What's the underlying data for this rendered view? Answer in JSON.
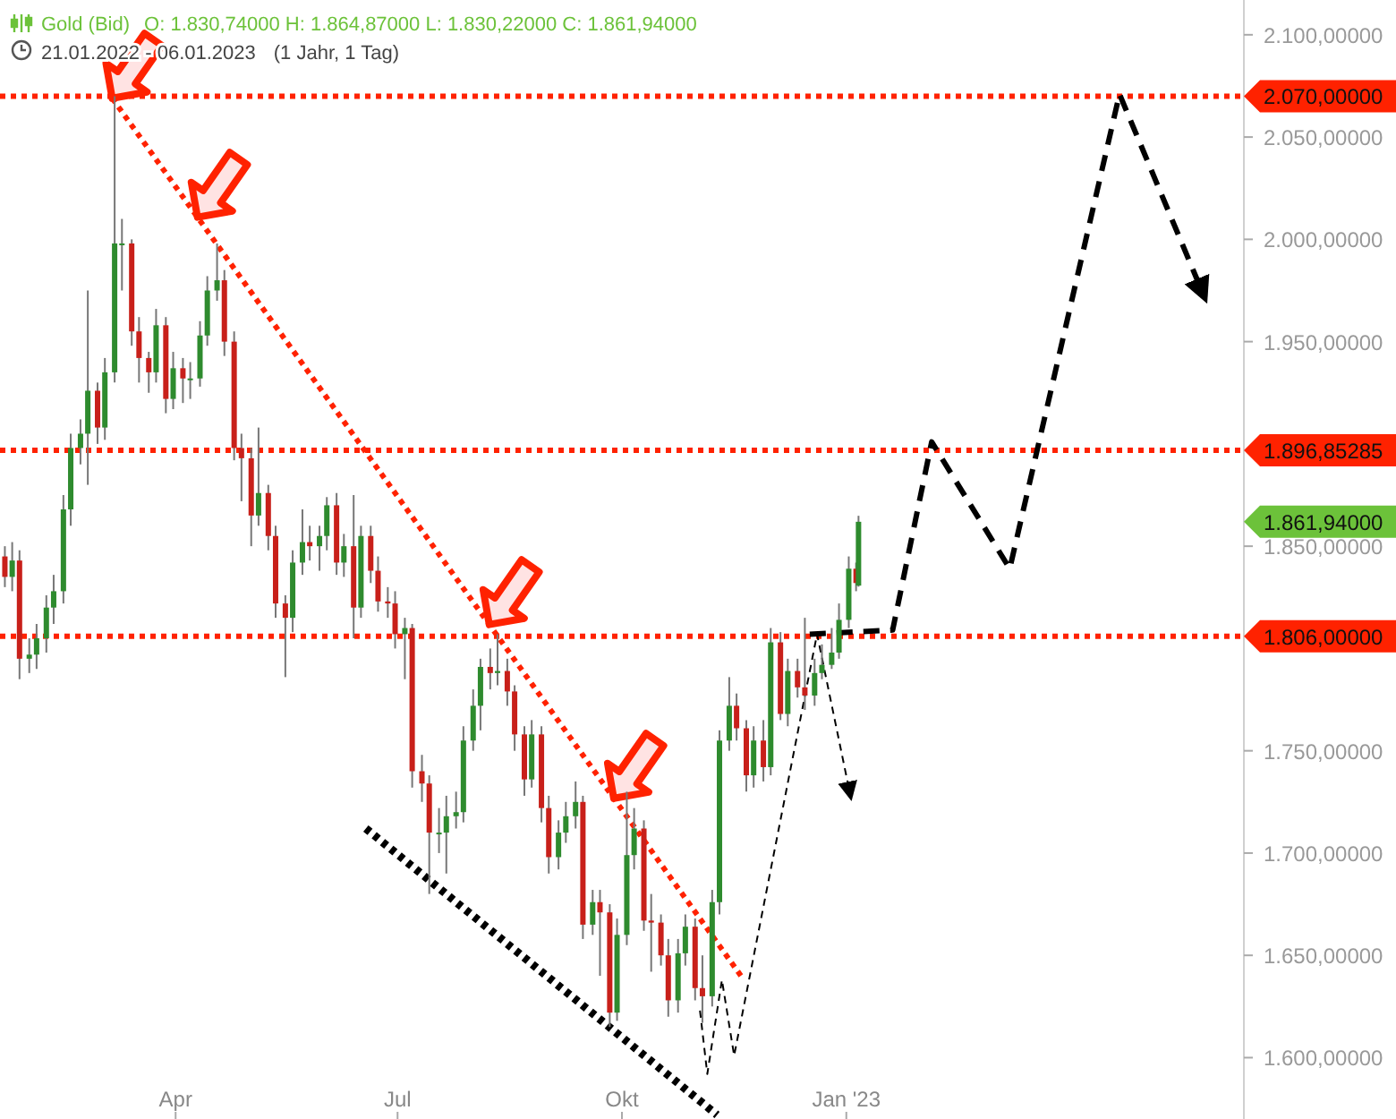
{
  "chart_data": {
    "type": "candlestick",
    "title": "Gold (Bid)",
    "subtitle": "O: 1.830,74000  H: 1.864,87000  L: 1.830,22000  C: 1.861,94000",
    "annotations": [
      "21.01.2022 - 06.01.2023",
      "(1 Jahr, 1 Tag)",
      "1.861,94000"
    ],
    "xlim": [
      "2022-01-19",
      "2023-06-13"
    ],
    "xticks": [
      {
        "value": "2022-04-01",
        "label": "Apr"
      },
      {
        "value": "2022-07-01",
        "label": "Jul"
      },
      {
        "value": "2022-10-01",
        "label": "Okt"
      },
      {
        "value": "2023-01-01",
        "label": "Jan '23"
      }
    ],
    "ylim": [
      1570,
      2117
    ],
    "yticks": [
      {
        "value": 1600,
        "label": "1.600,00000"
      },
      {
        "value": 1650,
        "label": "1.650,00000"
      },
      {
        "value": 1700,
        "label": "1.700,00000"
      },
      {
        "value": 1750,
        "label": "1.750,00000"
      },
      {
        "value": 1850,
        "label": "1.850,00000"
      },
      {
        "value": 1950,
        "label": "1.950,00000"
      },
      {
        "value": 2000,
        "label": "2.000,00000"
      },
      {
        "value": 2050,
        "label": "2.050,00000"
      },
      {
        "value": 2100,
        "label": "2.100,00000"
      }
    ],
    "ref_lines": [
      {
        "axis": "y",
        "value": 2070,
        "label": "2.070,00000",
        "color": "#ff2200",
        "line_style": "dotted"
      },
      {
        "axis": "y",
        "value": 1896.85285,
        "label": "1.896,85285",
        "color": "#ff2200",
        "line_style": "dotted"
      },
      {
        "axis": "y",
        "value": 1806,
        "label": "1.806,00000",
        "color": "#ff2200",
        "line_style": "dotted"
      }
    ],
    "series": [
      {
        "x": [
          "2022-01-21",
          "2022-01-24",
          "2022-01-27",
          "2022-01-31",
          "2022-02-03",
          "2022-02-07",
          "2022-02-10",
          "2022-02-14",
          "2022-02-17",
          "2022-02-21",
          "2022-02-24",
          "2022-02-28",
          "2022-03-03",
          "2022-03-07",
          "2022-03-10",
          "2022-03-14",
          "2022-03-17",
          "2022-03-21",
          "2022-03-24",
          "2022-03-28",
          "2022-03-31",
          "2022-04-04",
          "2022-04-07",
          "2022-04-11",
          "2022-04-14",
          "2022-04-18",
          "2022-04-21",
          "2022-04-25",
          "2022-04-28",
          "2022-05-02",
          "2022-05-05",
          "2022-05-09",
          "2022-05-12",
          "2022-05-16",
          "2022-05-19",
          "2022-05-23",
          "2022-05-26",
          "2022-05-30",
          "2022-06-02",
          "2022-06-06",
          "2022-06-09",
          "2022-06-13",
          "2022-06-16",
          "2022-06-20",
          "2022-06-23",
          "2022-06-27",
          "2022-06-30",
          "2022-07-04",
          "2022-07-07",
          "2022-07-11",
          "2022-07-14",
          "2022-07-18",
          "2022-07-21",
          "2022-07-25",
          "2022-07-28",
          "2022-08-01",
          "2022-08-04",
          "2022-08-08",
          "2022-08-11",
          "2022-08-15",
          "2022-08-18",
          "2022-08-22",
          "2022-08-25",
          "2022-08-29",
          "2022-09-01",
          "2022-09-05",
          "2022-09-08",
          "2022-09-12",
          "2022-09-15",
          "2022-09-19",
          "2022-09-22",
          "2022-09-26",
          "2022-09-29",
          "2022-10-03",
          "2022-10-06",
          "2022-10-10",
          "2022-10-13",
          "2022-10-17",
          "2022-10-20",
          "2022-10-24",
          "2022-10-27",
          "2022-10-31",
          "2022-11-03",
          "2022-11-07",
          "2022-11-10",
          "2022-11-14",
          "2022-11-17",
          "2022-11-21",
          "2022-11-24",
          "2022-11-28",
          "2022-12-01",
          "2022-12-05",
          "2022-12-08",
          "2022-12-12",
          "2022-12-15",
          "2022-12-19",
          "2022-12-22",
          "2022-12-26",
          "2022-12-29",
          "2023-01-02",
          "2023-01-05",
          "2023-01-06"
        ],
        "ohlc": [
          [
            1845,
            1850,
            1830,
            1835
          ],
          [
            1835,
            1852,
            1828,
            1843
          ],
          [
            1843,
            1848,
            1785,
            1795
          ],
          [
            1795,
            1805,
            1788,
            1797
          ],
          [
            1797,
            1812,
            1790,
            1805
          ],
          [
            1805,
            1826,
            1798,
            1820
          ],
          [
            1820,
            1836,
            1812,
            1828
          ],
          [
            1828,
            1875,
            1822,
            1868
          ],
          [
            1868,
            1905,
            1860,
            1898
          ],
          [
            1898,
            1912,
            1890,
            1905
          ],
          [
            1905,
            1975,
            1880,
            1926
          ],
          [
            1926,
            1930,
            1900,
            1908
          ],
          [
            1908,
            1942,
            1902,
            1935
          ],
          [
            1935,
            2070,
            1930,
            1998
          ],
          [
            1998,
            2010,
            1975,
            1998
          ],
          [
            1998,
            2000,
            1948,
            1955
          ],
          [
            1955,
            1962,
            1930,
            1942
          ],
          [
            1942,
            1945,
            1925,
            1935
          ],
          [
            1935,
            1966,
            1930,
            1958
          ],
          [
            1958,
            1962,
            1915,
            1922
          ],
          [
            1922,
            1945,
            1917,
            1937
          ],
          [
            1937,
            1942,
            1920,
            1932
          ],
          [
            1932,
            1940,
            1922,
            1932
          ],
          [
            1932,
            1960,
            1928,
            1953
          ],
          [
            1953,
            1982,
            1948,
            1975
          ],
          [
            1975,
            1998,
            1970,
            1980
          ],
          [
            1980,
            1985,
            1943,
            1950
          ],
          [
            1950,
            1955,
            1892,
            1898
          ],
          [
            1898,
            1905,
            1872,
            1893
          ],
          [
            1893,
            1898,
            1850,
            1865
          ],
          [
            1865,
            1908,
            1860,
            1876
          ],
          [
            1876,
            1880,
            1848,
            1855
          ],
          [
            1855,
            1860,
            1815,
            1822
          ],
          [
            1822,
            1826,
            1786,
            1815
          ],
          [
            1815,
            1848,
            1808,
            1842
          ],
          [
            1842,
            1868,
            1836,
            1852
          ],
          [
            1852,
            1860,
            1843,
            1850
          ],
          [
            1850,
            1860,
            1838,
            1855
          ],
          [
            1855,
            1874,
            1848,
            1870
          ],
          [
            1870,
            1876,
            1836,
            1842
          ],
          [
            1842,
            1856,
            1835,
            1850
          ],
          [
            1850,
            1875,
            1805,
            1820
          ],
          [
            1820,
            1860,
            1815,
            1855
          ],
          [
            1855,
            1860,
            1832,
            1838
          ],
          [
            1838,
            1845,
            1818,
            1823
          ],
          [
            1823,
            1830,
            1815,
            1822
          ],
          [
            1822,
            1828,
            1800,
            1807
          ],
          [
            1807,
            1815,
            1785,
            1810
          ],
          [
            1810,
            1812,
            1732,
            1740
          ],
          [
            1740,
            1748,
            1725,
            1734
          ],
          [
            1734,
            1738,
            1680,
            1710
          ],
          [
            1710,
            1722,
            1700,
            1710
          ],
          [
            1710,
            1728,
            1690,
            1718
          ],
          [
            1718,
            1730,
            1712,
            1720
          ],
          [
            1720,
            1762,
            1715,
            1755
          ],
          [
            1755,
            1780,
            1750,
            1772
          ],
          [
            1772,
            1795,
            1760,
            1791
          ],
          [
            1791,
            1800,
            1780,
            1788
          ],
          [
            1788,
            1807,
            1782,
            1789
          ],
          [
            1789,
            1795,
            1772,
            1779
          ],
          [
            1779,
            1782,
            1750,
            1758
          ],
          [
            1758,
            1762,
            1728,
            1736
          ],
          [
            1736,
            1765,
            1732,
            1758
          ],
          [
            1758,
            1762,
            1715,
            1722
          ],
          [
            1722,
            1728,
            1690,
            1698
          ],
          [
            1698,
            1716,
            1692,
            1710
          ],
          [
            1710,
            1725,
            1705,
            1718
          ],
          [
            1718,
            1735,
            1712,
            1725
          ],
          [
            1725,
            1728,
            1658,
            1665
          ],
          [
            1665,
            1682,
            1660,
            1676
          ],
          [
            1676,
            1682,
            1640,
            1671
          ],
          [
            1671,
            1675,
            1615,
            1622
          ],
          [
            1622,
            1668,
            1618,
            1660
          ],
          [
            1660,
            1730,
            1655,
            1699
          ],
          [
            1699,
            1722,
            1692,
            1712
          ],
          [
            1712,
            1716,
            1662,
            1667
          ],
          [
            1667,
            1680,
            1642,
            1666
          ],
          [
            1666,
            1670,
            1645,
            1650
          ],
          [
            1650,
            1658,
            1620,
            1628
          ],
          [
            1628,
            1658,
            1622,
            1651
          ],
          [
            1651,
            1670,
            1645,
            1664
          ],
          [
            1664,
            1668,
            1628,
            1634
          ],
          [
            1634,
            1650,
            1617,
            1630
          ],
          [
            1630,
            1682,
            1625,
            1676
          ],
          [
            1676,
            1760,
            1670,
            1755
          ],
          [
            1755,
            1786,
            1750,
            1772
          ],
          [
            1772,
            1778,
            1755,
            1761
          ],
          [
            1761,
            1765,
            1730,
            1738
          ],
          [
            1738,
            1762,
            1732,
            1755
          ],
          [
            1755,
            1765,
            1735,
            1742
          ],
          [
            1742,
            1810,
            1738,
            1803
          ],
          [
            1803,
            1808,
            1765,
            1768
          ],
          [
            1768,
            1795,
            1762,
            1789
          ],
          [
            1789,
            1795,
            1776,
            1781
          ],
          [
            1781,
            1815,
            1770,
            1777
          ],
          [
            1777,
            1795,
            1772,
            1788
          ],
          [
            1788,
            1802,
            1785,
            1792
          ],
          [
            1792,
            1810,
            1790,
            1798
          ],
          [
            1798,
            1822,
            1795,
            1814
          ],
          [
            1814,
            1845,
            1810,
            1839
          ],
          [
            1839,
            1842,
            1828,
            1832
          ],
          [
            1830.74,
            1864.87,
            1830.22,
            1861.94
          ]
        ]
      },
      {
        "type": "line",
        "color": "#ff2200",
        "line_style": "dotted",
        "x": [
          "2022-03-06",
          "2022-11-20"
        ],
        "values": [
          2069,
          1638
        ]
      },
      {
        "type": "line",
        "color": "#000000",
        "line_style": "dotted",
        "x": [
          "2022-06-18",
          "2022-11-09"
        ],
        "values": [
          1712,
          1572
        ]
      },
      {
        "type": "line",
        "color": "#000000",
        "line_style": "dashed",
        "x": [
          "2022-12-17",
          "2023-01-20",
          "2023-02-05",
          "2023-03-09",
          "2023-04-23",
          "2023-05-26"
        ],
        "values": [
          1807,
          1809,
          1901,
          1839,
          2071,
          1977
        ]
      },
      {
        "type": "line",
        "color": "#000000",
        "line_style": "dashed",
        "x": [
          "2022-11-02",
          "2022-11-05",
          "2022-11-11",
          "2022-11-16",
          "2022-12-20",
          "2023-01-02"
        ],
        "values": [
          1623,
          1592,
          1638,
          1601,
          1807,
          1732
        ]
      }
    ]
  }
}
